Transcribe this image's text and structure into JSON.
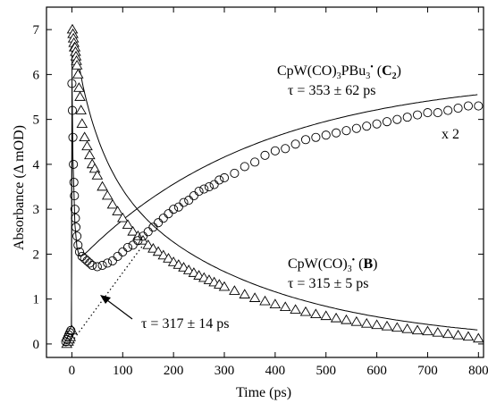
{
  "chart_data": {
    "type": "scatter",
    "xlabel": "Time  (ps)",
    "ylabel": "Absorbance  (Δ mOD)",
    "xlim": [
      -50,
      810
    ],
    "ylim": [
      -0.3,
      7.5
    ],
    "xticks": [
      0,
      100,
      200,
      300,
      400,
      500,
      600,
      700,
      800
    ],
    "yticks": [
      0,
      1,
      2,
      3,
      4,
      5,
      6,
      7
    ],
    "xtick_labels": [
      "0",
      "100",
      "200",
      "300",
      "400",
      "500",
      "600",
      "700",
      "800"
    ],
    "ytick_labels": [
      "0",
      "1",
      "2",
      "3",
      "4",
      "5",
      "6",
      "7"
    ],
    "grid": false,
    "series": [
      {
        "marker": "triangle",
        "label_text": "CpW(CO)",
        "label_sub": "3",
        "label_sup": "•",
        "label_bold": "B",
        "tau_text": "τ = 315 ± 5 ps",
        "x": [
          -10,
          -7,
          -5,
          -3,
          0,
          1,
          2,
          3,
          4,
          5,
          6,
          7,
          8,
          9,
          10,
          12,
          14,
          16,
          18,
          20,
          25,
          30,
          35,
          40,
          45,
          50,
          60,
          70,
          80,
          90,
          100,
          110,
          120,
          130,
          140,
          150,
          160,
          170,
          180,
          190,
          200,
          210,
          220,
          230,
          240,
          250,
          260,
          270,
          280,
          290,
          300,
          320,
          340,
          360,
          380,
          400,
          420,
          440,
          460,
          480,
          500,
          520,
          540,
          560,
          580,
          600,
          620,
          640,
          660,
          680,
          700,
          720,
          740,
          760,
          780,
          800
        ],
        "y": [
          0.0,
          0.05,
          0.1,
          0.15,
          0.3,
          7.0,
          6.9,
          6.8,
          6.7,
          6.6,
          6.6,
          6.5,
          6.4,
          6.3,
          6.2,
          6.0,
          5.7,
          5.5,
          5.2,
          4.9,
          4.6,
          4.4,
          4.2,
          4.0,
          3.9,
          3.75,
          3.5,
          3.3,
          3.1,
          2.95,
          2.8,
          2.65,
          2.5,
          2.4,
          2.3,
          2.2,
          2.12,
          2.05,
          1.97,
          1.9,
          1.82,
          1.76,
          1.7,
          1.64,
          1.58,
          1.52,
          1.47,
          1.42,
          1.37,
          1.32,
          1.27,
          1.18,
          1.1,
          1.02,
          0.95,
          0.88,
          0.82,
          0.76,
          0.71,
          0.66,
          0.62,
          0.57,
          0.53,
          0.49,
          0.45,
          0.42,
          0.39,
          0.36,
          0.33,
          0.3,
          0.28,
          0.25,
          0.22,
          0.19,
          0.16,
          0.12
        ],
        "fit": {
          "tau": 315,
          "amplitude": 4.0,
          "offset": -0.2
        }
      },
      {
        "marker": "circle",
        "label_text": "CpW(CO)",
        "label_sub": "3",
        "label_mid": "PBu",
        "label_sub2": "3",
        "label_sup": "•",
        "label_bold": "C",
        "label_bold_sub": "2",
        "tau_text": "τ = 353 ± 62 ps",
        "scale_text": "x 2",
        "x": [
          -12,
          -10,
          -8,
          -6,
          -4,
          -2,
          0,
          1,
          2,
          3,
          4,
          5,
          6,
          7,
          8,
          10,
          12,
          15,
          20,
          25,
          30,
          35,
          40,
          50,
          60,
          70,
          80,
          90,
          100,
          110,
          120,
          130,
          140,
          150,
          160,
          170,
          180,
          190,
          200,
          210,
          220,
          230,
          240,
          250,
          260,
          270,
          280,
          290,
          300,
          320,
          340,
          360,
          380,
          400,
          420,
          440,
          460,
          480,
          500,
          520,
          540,
          560,
          580,
          600,
          620,
          640,
          660,
          680,
          700,
          720,
          740,
          760,
          780,
          800
        ],
        "y": [
          0.05,
          0.1,
          0.15,
          0.2,
          0.25,
          0.3,
          5.8,
          5.2,
          4.6,
          4.0,
          3.6,
          3.3,
          3.0,
          2.8,
          2.6,
          2.4,
          2.2,
          2.05,
          1.95,
          1.9,
          1.85,
          1.8,
          1.75,
          1.72,
          1.75,
          1.8,
          1.85,
          1.95,
          2.05,
          2.15,
          2.2,
          2.3,
          2.4,
          2.5,
          2.6,
          2.7,
          2.8,
          2.9,
          3.0,
          3.05,
          3.15,
          3.2,
          3.3,
          3.4,
          3.45,
          3.5,
          3.55,
          3.65,
          3.7,
          3.8,
          3.95,
          4.05,
          4.2,
          4.3,
          4.35,
          4.45,
          4.55,
          4.6,
          4.65,
          4.7,
          4.75,
          4.8,
          4.85,
          4.9,
          4.95,
          5.0,
          5.05,
          5.1,
          5.15,
          5.15,
          5.2,
          5.25,
          5.3,
          5.3
        ],
        "fit": {
          "tau": 353,
          "amplitude": -4.3,
          "offset": 6.0
        }
      }
    ],
    "annotations": [
      {
        "text": "τ = 317 ± 14 ps"
      }
    ]
  }
}
